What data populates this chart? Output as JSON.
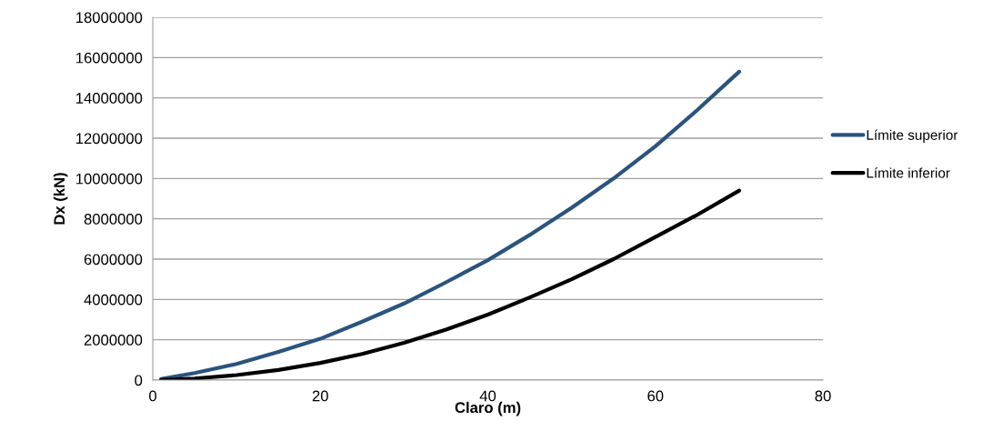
{
  "chart_data": {
    "type": "line",
    "xlabel": "Claro (m)",
    "ylabel": "Dx (kN)",
    "x": [
      1,
      5,
      10,
      15,
      20,
      25,
      30,
      35,
      40,
      45,
      50,
      55,
      60,
      65,
      70
    ],
    "series": [
      {
        "name": "Límite superior",
        "color": "#2a547e",
        "values": [
          50000,
          350000,
          800000,
          1400000,
          2050000,
          2900000,
          3800000,
          4850000,
          5950000,
          7200000,
          8550000,
          10000000,
          11600000,
          13400000,
          15300000
        ]
      },
      {
        "name": "Límite inferior",
        "color": "#000000",
        "values": [
          10000,
          80000,
          250000,
          500000,
          850000,
          1300000,
          1850000,
          2500000,
          3250000,
          4100000,
          5000000,
          6000000,
          7100000,
          8200000,
          9400000
        ]
      }
    ],
    "xlim": [
      0,
      80
    ],
    "xticks": [
      0,
      20,
      40,
      60,
      80
    ],
    "ylim": [
      0,
      18000000
    ],
    "yticks": [
      0,
      2000000,
      4000000,
      6000000,
      8000000,
      10000000,
      12000000,
      14000000,
      16000000,
      18000000
    ],
    "grid": "y",
    "legend": "right",
    "marker": "none",
    "line_style": "solid"
  }
}
